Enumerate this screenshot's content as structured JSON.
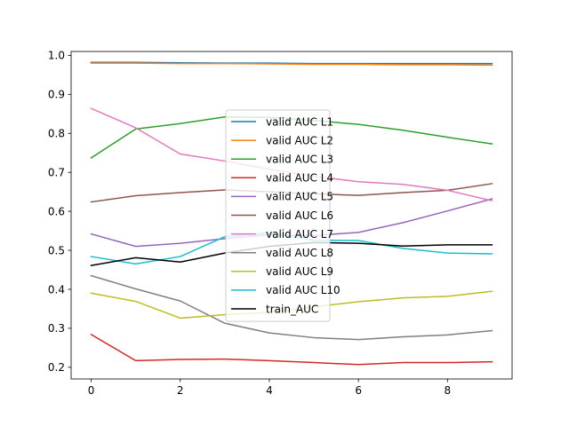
{
  "chart_data": {
    "type": "line",
    "title": "",
    "xlabel": "",
    "ylabel": "",
    "xlim": [
      -0.45,
      9.45
    ],
    "ylim": [
      0.17,
      1.01
    ],
    "xticks": [
      0,
      2,
      4,
      6,
      8
    ],
    "yticks": [
      0.2,
      0.3,
      0.4,
      0.5,
      0.6,
      0.7,
      0.8,
      0.9,
      1.0
    ],
    "ytick_labels": [
      "0.2",
      "0.3",
      "0.4",
      "0.5",
      "0.6",
      "0.7",
      "0.8",
      "0.9",
      "1.0"
    ],
    "grid": false,
    "legend_position": "center",
    "x": [
      0,
      1,
      2,
      3,
      4,
      5,
      6,
      7,
      8,
      9
    ],
    "series": [
      {
        "name": "valid AUC L1",
        "color": "#1f77b4",
        "values": [
          0.982,
          0.982,
          0.981,
          0.98,
          0.98,
          0.979,
          0.979,
          0.979,
          0.979,
          0.979
        ]
      },
      {
        "name": "valid AUC L2",
        "color": "#ff7f0e",
        "values": [
          0.98,
          0.98,
          0.979,
          0.979,
          0.978,
          0.977,
          0.977,
          0.976,
          0.976,
          0.975
        ]
      },
      {
        "name": "valid AUC L3",
        "color": "#2ca02c",
        "values": [
          0.737,
          0.811,
          0.825,
          0.842,
          0.841,
          0.833,
          0.823,
          0.808,
          0.79,
          0.773
        ]
      },
      {
        "name": "valid AUC L4",
        "color": "#d62728",
        "values": [
          0.284,
          0.217,
          0.22,
          0.221,
          0.217,
          0.212,
          0.207,
          0.212,
          0.212,
          0.214
        ]
      },
      {
        "name": "valid AUC L5",
        "color": "#9467bd",
        "values": [
          0.542,
          0.51,
          0.518,
          0.53,
          0.54,
          0.538,
          0.546,
          0.571,
          0.601,
          0.632
        ]
      },
      {
        "name": "valid AUC L6",
        "color": "#8c564b",
        "values": [
          0.624,
          0.64,
          0.648,
          0.655,
          0.65,
          0.645,
          0.641,
          0.648,
          0.654,
          0.671
        ]
      },
      {
        "name": "valid AUC L7",
        "color": "#e377c2",
        "values": [
          0.864,
          0.814,
          0.747,
          0.729,
          0.708,
          0.69,
          0.676,
          0.669,
          0.654,
          0.627
        ]
      },
      {
        "name": "valid AUC L8",
        "color": "#7f7f7f",
        "values": [
          0.435,
          0.401,
          0.37,
          0.313,
          0.288,
          0.276,
          0.271,
          0.278,
          0.283,
          0.294
        ]
      },
      {
        "name": "valid AUC L9",
        "color": "#bcbd22",
        "values": [
          0.39,
          0.369,
          0.326,
          0.335,
          0.341,
          0.355,
          0.368,
          0.378,
          0.382,
          0.395
        ]
      },
      {
        "name": "valid AUC L10",
        "color": "#17becf",
        "values": [
          0.484,
          0.465,
          0.484,
          0.535,
          0.545,
          0.526,
          0.525,
          0.505,
          0.493,
          0.491
        ]
      },
      {
        "name": "train_AUC",
        "color": "#000000",
        "values": [
          0.461,
          0.481,
          0.47,
          0.493,
          0.51,
          0.52,
          0.518,
          0.511,
          0.514,
          0.514
        ]
      }
    ]
  }
}
